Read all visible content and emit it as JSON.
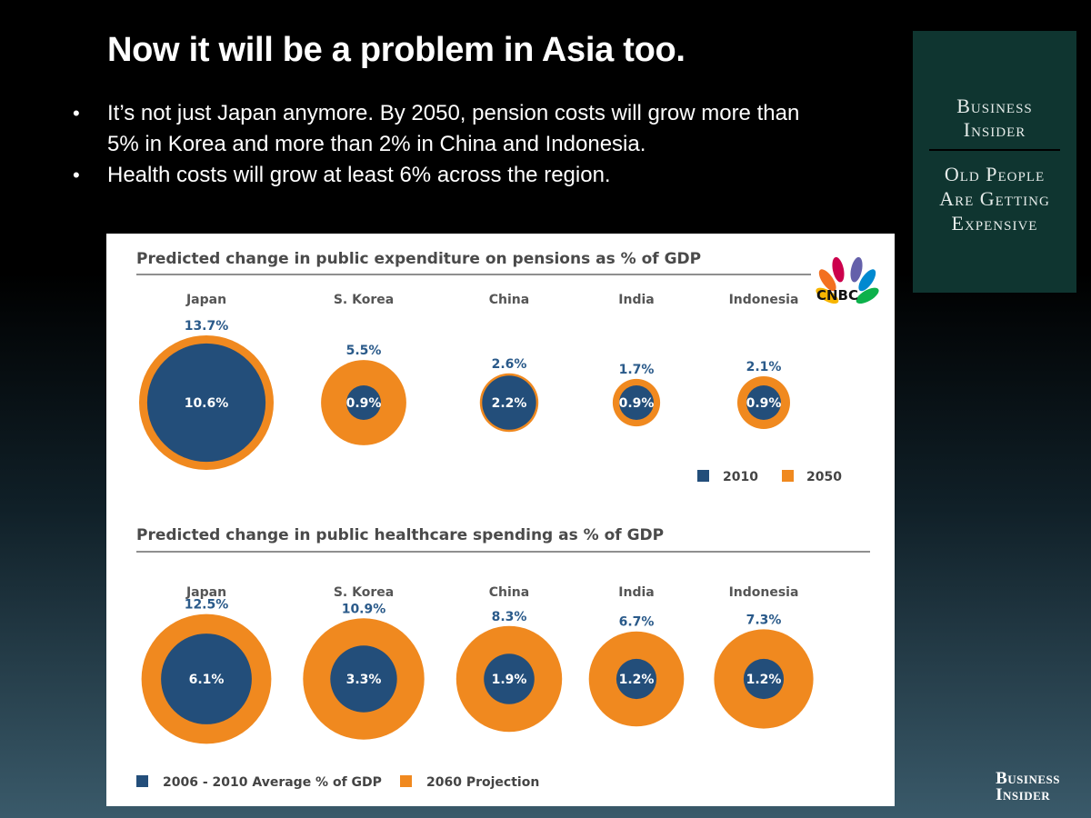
{
  "slide": {
    "title": "Now it will be a problem in Asia too.",
    "bullets": [
      "It’s not just Japan anymore. By 2050, pension costs will grow more than 5% in Korea and more than 2% in China and Indonesia.",
      "Health costs will grow at least 6% across the region."
    ],
    "bullet_char": "•"
  },
  "side_panel": {
    "brand_line1": "Business",
    "brand_line2": "Insider",
    "subtitle_line1": "Old People",
    "subtitle_line2": "Are Getting",
    "subtitle_line3": "Expensive"
  },
  "footer_logo": {
    "line1": "Business",
    "line2": "Insider"
  },
  "source_logo": {
    "text": "CNBC"
  },
  "colors": {
    "blue": "#234e7a",
    "orange": "#f0891f",
    "title_bar": "#8f8f8f",
    "blue_text": "#2a5a8a"
  },
  "chart_data": [
    {
      "type": "bubble",
      "title": "Predicted change in public expenditure on pensions as % of GDP",
      "categories": [
        "Japan",
        "S. Korea",
        "China",
        "India",
        "Indonesia"
      ],
      "series": [
        {
          "name": "2010",
          "values": [
            10.6,
            0.9,
            2.2,
            0.9,
            0.9
          ],
          "labels": [
            "10.6%",
            "0.9%",
            "2.2%",
            "0.9%",
            "0.9%"
          ]
        },
        {
          "name": "2050",
          "values": [
            13.7,
            5.5,
            2.6,
            1.7,
            2.1
          ],
          "labels": [
            "13.7%",
            "5.5%",
            "2.6%",
            "1.7%",
            "2.1%"
          ]
        }
      ],
      "legend": [
        "2010",
        "2050"
      ]
    },
    {
      "type": "bubble",
      "title": "Predicted change in public healthcare spending as % of GDP",
      "categories": [
        "Japan",
        "S. Korea",
        "China",
        "India",
        "Indonesia"
      ],
      "series": [
        {
          "name": "2006 - 2010 Average % of GDP",
          "values": [
            6.1,
            3.3,
            1.9,
            1.2,
            1.2
          ],
          "labels": [
            "6.1%",
            "3.3%",
            "1.9%",
            "1.2%",
            "1.2%"
          ]
        },
        {
          "name": "2060 Projection",
          "values": [
            12.5,
            10.9,
            8.3,
            6.7,
            7.3
          ],
          "labels": [
            "12.5%",
            "10.9%",
            "8.3%",
            "6.7%",
            "7.3%"
          ]
        }
      ],
      "legend": [
        "2006 - 2010 Average % of GDP",
        "2060 Projection"
      ]
    }
  ]
}
